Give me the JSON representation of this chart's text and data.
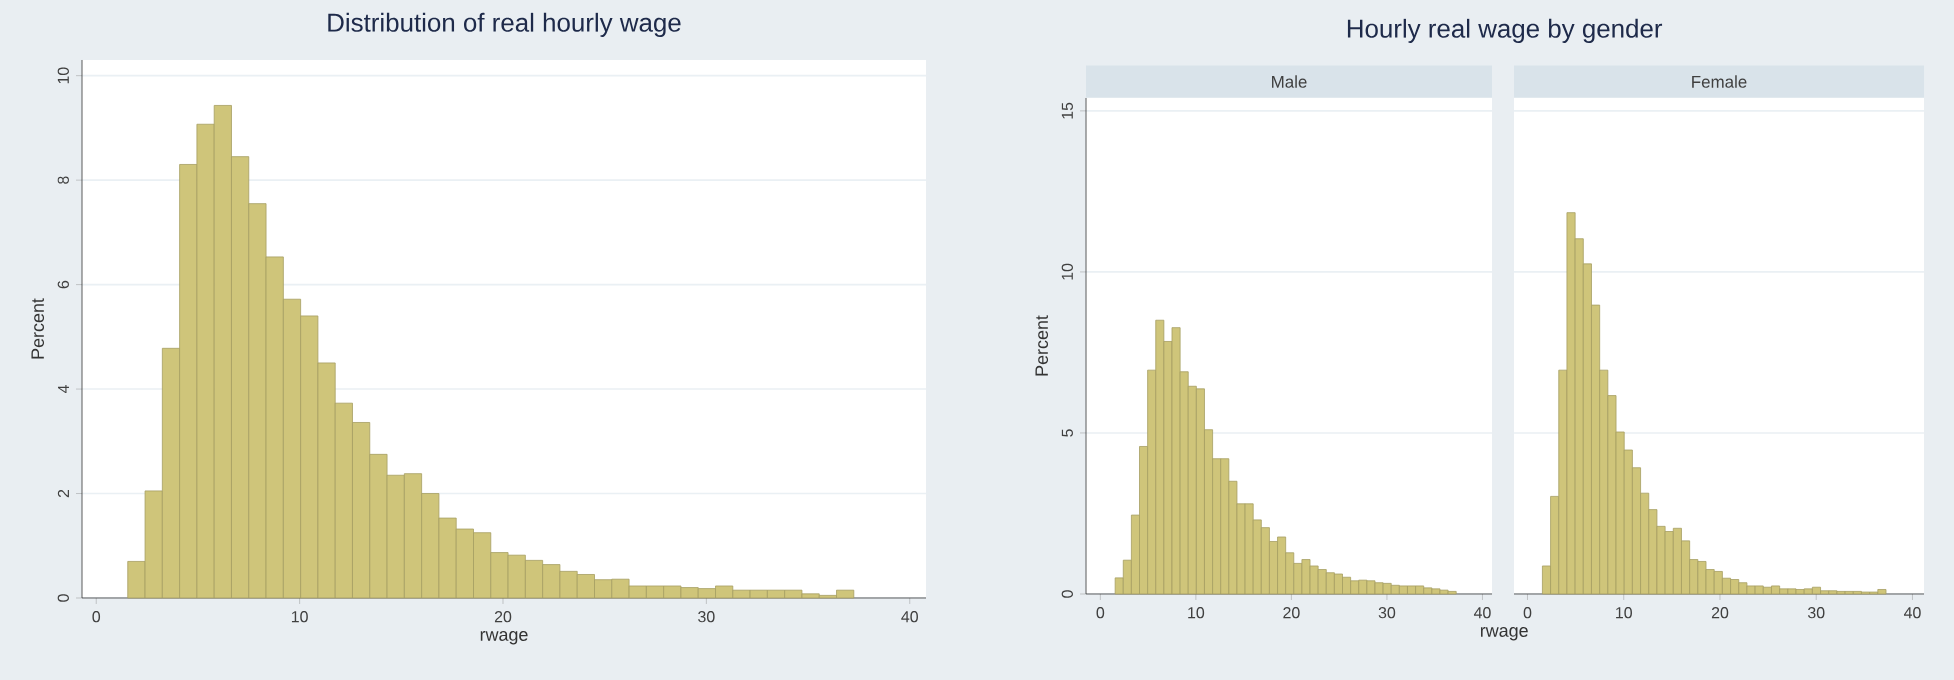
{
  "chart_data": [
    {
      "type": "histogram",
      "title": "Distribution of real hourly wage",
      "xlabel": "rwage",
      "ylabel": "Percent",
      "bins": [
        1.55,
        2.4,
        3.25,
        4.1,
        4.95,
        5.8,
        6.65,
        7.5,
        8.35,
        9.2,
        10.05,
        10.9,
        11.75,
        12.6,
        13.45,
        14.3,
        15.15,
        16.0,
        16.85,
        17.7,
        18.55,
        19.4,
        20.25,
        21.1,
        21.95,
        22.8,
        23.65,
        24.5,
        25.35,
        26.2,
        27.05,
        27.9,
        28.75,
        29.6,
        30.45,
        31.3,
        32.15,
        33.0,
        33.85,
        34.7,
        35.55,
        36.4,
        37.25
      ],
      "values": [
        0.7,
        2.05,
        4.78,
        8.3,
        9.07,
        9.43,
        8.45,
        7.55,
        6.53,
        5.72,
        5.4,
        4.5,
        3.73,
        3.36,
        2.75,
        2.35,
        2.38,
        2.0,
        1.53,
        1.32,
        1.25,
        0.87,
        0.82,
        0.72,
        0.64,
        0.51,
        0.45,
        0.35,
        0.36,
        0.23,
        0.23,
        0.23,
        0.2,
        0.18,
        0.23,
        0.15,
        0.15,
        0.15,
        0.15,
        0.08,
        0.05,
        0.15
      ],
      "color": "#cfc57a",
      "xlim": [
        -0.7,
        40.8
      ],
      "ylim": [
        0,
        10.3
      ],
      "xticks": [
        0,
        10,
        20,
        30,
        40
      ],
      "yticks": [
        0,
        2,
        4,
        6,
        8,
        10
      ],
      "grid": "y"
    },
    {
      "type": "histogram",
      "title": "Hourly real wage by gender",
      "subtitle": "Male",
      "xlabel": "rwage",
      "ylabel": "Percent",
      "bins": [
        1.55,
        2.4,
        3.25,
        4.1,
        4.95,
        5.8,
        6.65,
        7.5,
        8.35,
        9.2,
        10.05,
        10.9,
        11.75,
        12.6,
        13.45,
        14.3,
        15.15,
        16.0,
        16.85,
        17.7,
        18.55,
        19.4,
        20.25,
        21.1,
        21.95,
        22.8,
        23.65,
        24.5,
        25.35,
        26.2,
        27.05,
        27.9,
        28.75,
        29.6,
        30.45,
        31.3,
        32.15,
        33.0,
        33.85,
        34.7,
        35.55,
        36.4,
        37.25
      ],
      "values": [
        0.5,
        1.05,
        2.45,
        4.58,
        6.95,
        8.5,
        7.84,
        8.27,
        6.9,
        6.45,
        6.37,
        5.1,
        4.2,
        4.2,
        3.5,
        2.8,
        2.8,
        2.3,
        2.06,
        1.63,
        1.77,
        1.28,
        0.95,
        1.07,
        0.87,
        0.76,
        0.66,
        0.62,
        0.52,
        0.41,
        0.43,
        0.41,
        0.35,
        0.33,
        0.27,
        0.25,
        0.25,
        0.25,
        0.19,
        0.16,
        0.12,
        0.08
      ],
      "color": "#cfc57a",
      "xlim": [
        -1.5,
        41
      ],
      "ylim": [
        0,
        15.4
      ],
      "xticks": [
        0,
        10,
        20,
        30,
        40
      ],
      "yticks": [
        0,
        5,
        10,
        15
      ],
      "grid": "y"
    },
    {
      "type": "histogram",
      "subtitle": "Female",
      "bins": [
        1.55,
        2.4,
        3.25,
        4.1,
        4.95,
        5.8,
        6.65,
        7.5,
        8.35,
        9.2,
        10.05,
        10.9,
        11.75,
        12.6,
        13.45,
        14.3,
        15.15,
        16.0,
        16.85,
        17.7,
        18.55,
        19.4,
        20.25,
        21.1,
        21.95,
        22.8,
        23.65,
        24.5,
        25.35,
        26.2,
        27.05,
        27.9,
        28.75,
        29.6,
        30.45,
        31.3,
        32.15,
        33.0,
        33.85,
        34.7,
        35.55,
        36.4,
        37.25
      ],
      "values": [
        0.87,
        3.03,
        6.95,
        11.84,
        11.03,
        10.25,
        8.97,
        6.95,
        6.16,
        5.03,
        4.47,
        3.92,
        3.13,
        2.62,
        2.1,
        1.94,
        2.04,
        1.65,
        1.07,
        1.01,
        0.76,
        0.7,
        0.49,
        0.45,
        0.35,
        0.25,
        0.25,
        0.21,
        0.25,
        0.16,
        0.16,
        0.14,
        0.16,
        0.21,
        0.1,
        0.1,
        0.08,
        0.08,
        0.08,
        0.06,
        0.06,
        0.14
      ],
      "color": "#cfc57a",
      "xlim": [
        -1.4,
        41.2
      ],
      "ylim": [
        0,
        15.4
      ],
      "xticks": [
        0,
        10,
        20,
        30,
        40
      ],
      "yticks": [
        0,
        5,
        10,
        15
      ],
      "grid": "y",
      "tick_labels": "x"
    }
  ]
}
